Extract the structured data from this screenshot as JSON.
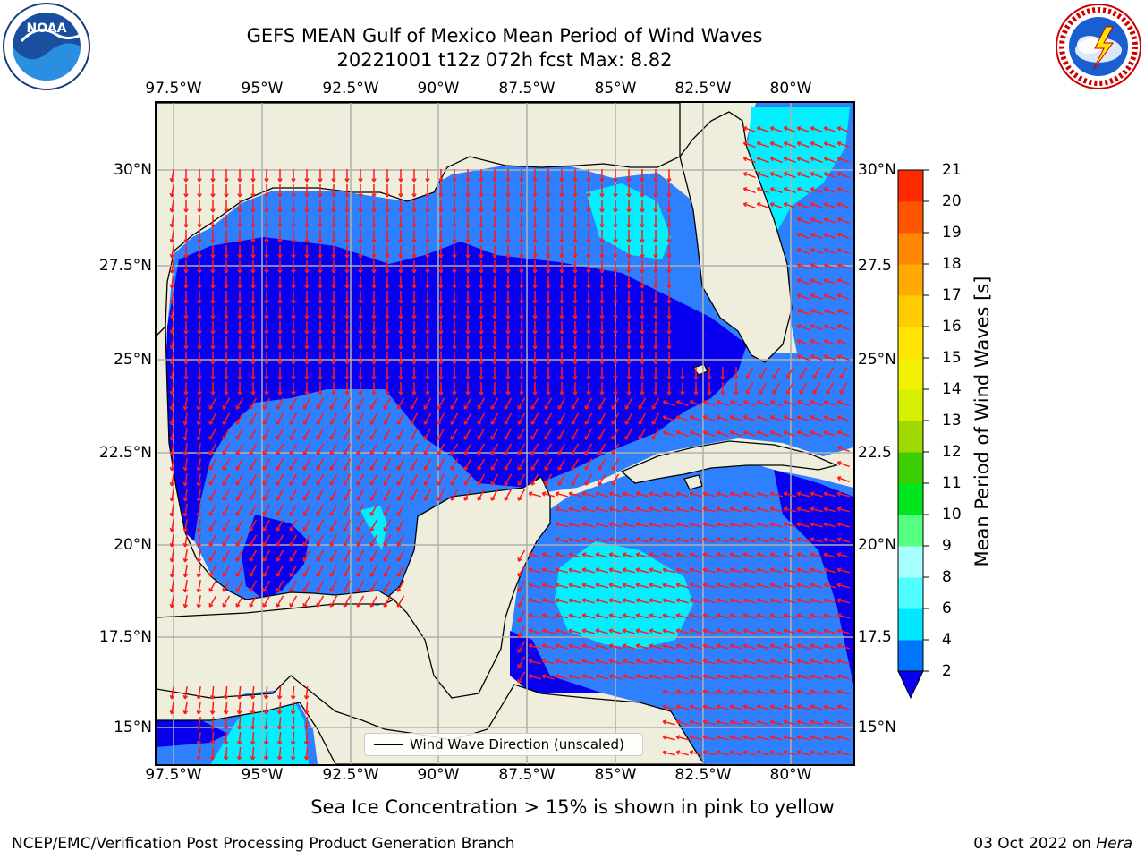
{
  "title_line1": "GEFS MEAN Gulf of Mexico Mean Period of Wind Waves",
  "title_line2": "20221001 t12z 072h fcst   Max: 8.82",
  "lon_labels": [
    "97.5°W",
    "95°W",
    "92.5°W",
    "90°W",
    "87.5°W",
    "85°W",
    "82.5°W",
    "80°W"
  ],
  "lat_labels_left": [
    "30°N",
    "27.5°N",
    "25°N",
    "22.5°N",
    "20°N",
    "17.5°N",
    "15°N"
  ],
  "lat_labels_right": [
    "30°N",
    "27.5",
    "25°N",
    "22.5",
    "20°N",
    "17.5",
    "15°N"
  ],
  "legend_label": "Wind Wave Direction (unscaled)",
  "colorbar": {
    "label": "Mean Period of Wind Waves [s]",
    "ticks": [
      "21",
      "20",
      "19",
      "18",
      "17",
      "16",
      "15",
      "14",
      "13",
      "12",
      "11",
      "10",
      "9",
      "8",
      "6",
      "4",
      "2"
    ],
    "levels": [
      2,
      4,
      6,
      8,
      9,
      10,
      11,
      12,
      13,
      14,
      15,
      16,
      17,
      18,
      19,
      20,
      21
    ],
    "colors": [
      "#0075ff",
      "#00e8ff",
      "#50ffff",
      "#a8ffff",
      "#55ff7f",
      "#00e61e",
      "#3cce00",
      "#a0d900",
      "#d6f000",
      "#f2f200",
      "#ffe500",
      "#ffcc00",
      "#ffaa00",
      "#ff8800",
      "#ff5500",
      "#ff2a00"
    ],
    "under_color": "#0a00f0"
  },
  "map_colors": {
    "land": "#efeddb",
    "deep_blue": "#0a00f0",
    "mid_blue": "#2f80ff",
    "cyan": "#00f0ff",
    "arrow": "#ff1a1a"
  },
  "caption": "Sea Ice Concentration > 15% is shown in pink to yellow",
  "footer_left": "NCEP/EMC/Verification Post Processing Product Generation Branch",
  "footer_date": "03 Oct 2022 on ",
  "footer_host": "Hera",
  "logos": {
    "noaa_text": "NOAA",
    "noaa_ring": "NATIONAL OCEANIC AND ATMOSPHERIC ADMINISTRATION · U.S. DEPARTMENT OF COMMERCE",
    "nws_ring": "NATIONAL WEATHER SERVICE"
  }
}
